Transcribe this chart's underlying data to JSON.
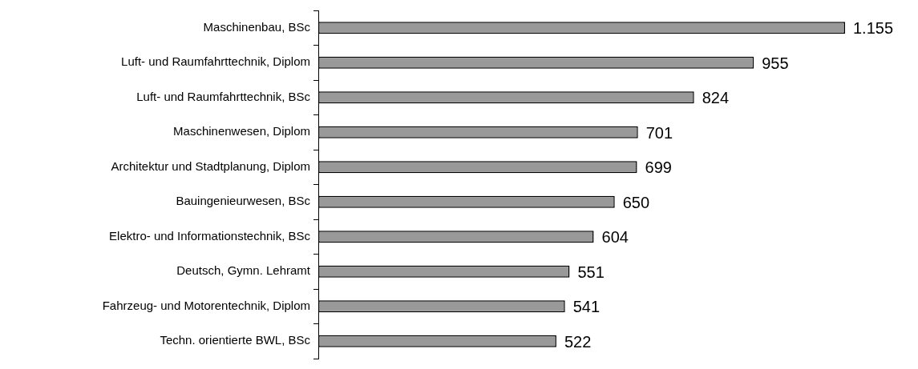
{
  "chart_data": {
    "type": "bar",
    "orientation": "horizontal",
    "categories": [
      "Maschinenbau, BSc",
      "Luft- und Raumfahrttechnik, Diplom",
      "Luft- und Raumfahrttechnik, BSc",
      "Maschinenwesen, Diplom",
      "Architektur und Stadtplanung, Diplom",
      "Bauingenieurwesen, BSc",
      "Elektro- und Informationstechnik, BSc",
      "Deutsch, Gymn. Lehramt",
      "Fahrzeug- und Motorentechnik, Diplom",
      "Techn. orientierte BWL, BSc"
    ],
    "values": [
      1155,
      955,
      824,
      701,
      699,
      650,
      604,
      551,
      541,
      522
    ],
    "value_labels": [
      "1.155",
      "955",
      "824",
      "701",
      "699",
      "650",
      "604",
      "551",
      "541",
      "522"
    ],
    "color": "#999999",
    "xlim": [
      0,
      1155
    ],
    "tick_labels": "y",
    "legend": false
  }
}
